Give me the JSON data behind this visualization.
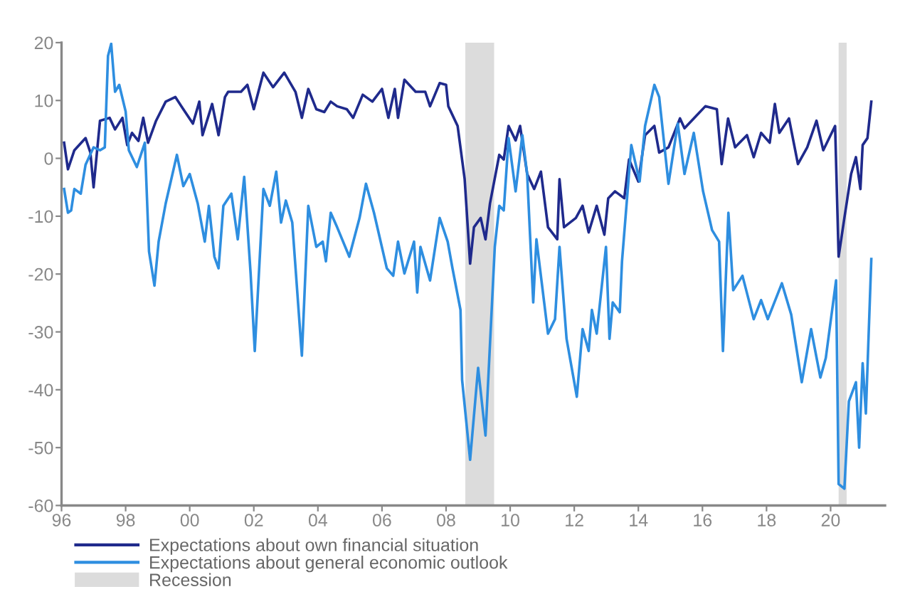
{
  "chart_data": {
    "type": "line",
    "xlim": [
      1996,
      2021.7
    ],
    "ylim": [
      -60,
      20
    ],
    "xticks": [
      {
        "value": 1996,
        "label": "96"
      },
      {
        "value": 1998,
        "label": "98"
      },
      {
        "value": 2000,
        "label": "00"
      },
      {
        "value": 2002,
        "label": "02"
      },
      {
        "value": 2004,
        "label": "04"
      },
      {
        "value": 2006,
        "label": "06"
      },
      {
        "value": 2008,
        "label": "08"
      },
      {
        "value": 2010,
        "label": "10"
      },
      {
        "value": 2012,
        "label": "12"
      },
      {
        "value": 2014,
        "label": "14"
      },
      {
        "value": 2016,
        "label": "16"
      },
      {
        "value": 2018,
        "label": "18"
      },
      {
        "value": 2020,
        "label": "20"
      }
    ],
    "yticks": [
      -60,
      -50,
      -40,
      -30,
      -20,
      -10,
      0,
      10,
      20
    ],
    "grid": false,
    "legend": "bottom left",
    "marker": "none",
    "line_style": "solid",
    "series": [
      {
        "name": "Expectations about own financial situation",
        "color": "#1f2a8c",
        "x": [
          1996.08,
          1996.2,
          1996.4,
          1996.75,
          1996.9,
          1997.0,
          1997.2,
          1997.5,
          1997.67,
          1997.9,
          1998.05,
          1998.2,
          1998.4,
          1998.55,
          1998.7,
          1998.95,
          1999.25,
          1999.55,
          1999.8,
          2000.1,
          2000.3,
          2000.4,
          2000.7,
          2000.9,
          2001.1,
          2001.2,
          2001.6,
          2001.8,
          2002.0,
          2002.3,
          2002.6,
          2002.95,
          2003.3,
          2003.5,
          2003.7,
          2003.95,
          2004.2,
          2004.4,
          2004.6,
          2004.9,
          2005.1,
          2005.4,
          2005.7,
          2006.0,
          2006.2,
          2006.4,
          2006.5,
          2006.7,
          2007.05,
          2007.35,
          2007.5,
          2007.8,
          2008.0,
          2008.07,
          2008.36,
          2008.58,
          2008.75,
          2008.87,
          2009.08,
          2009.23,
          2009.37,
          2009.66,
          2009.8,
          2009.95,
          2010.17,
          2010.31,
          2010.53,
          2010.75,
          2010.96,
          2011.18,
          2011.47,
          2011.54,
          2011.68,
          2012.05,
          2012.26,
          2012.45,
          2012.7,
          2012.94,
          2013.06,
          2013.27,
          2013.56,
          2013.71,
          2014.0,
          2014.21,
          2014.5,
          2014.65,
          2014.94,
          2015.3,
          2015.44,
          2015.73,
          2016.09,
          2016.45,
          2016.6,
          2016.8,
          2017.02,
          2017.39,
          2017.6,
          2017.83,
          2018.1,
          2018.26,
          2018.4,
          2018.7,
          2018.98,
          2019.27,
          2019.56,
          2019.77,
          2020.14,
          2020.25,
          2020.43,
          2020.64,
          2020.79,
          2020.93,
          2021.0,
          2021.15,
          2021.27
        ],
        "values": [
          2.7,
          -1.9,
          1.4,
          3.5,
          1,
          -5,
          6.5,
          7,
          5,
          7,
          2.3,
          4.4,
          3,
          7,
          2.7,
          6.5,
          9.8,
          10.6,
          8.5,
          6,
          9.8,
          4,
          9.4,
          4,
          10.6,
          11.5,
          11.5,
          12.7,
          8.5,
          14.8,
          12.3,
          14.8,
          11.5,
          7,
          12,
          8.5,
          8,
          9.8,
          9,
          8.5,
          7,
          11,
          9.8,
          12,
          7,
          12,
          7,
          13.6,
          11.5,
          11.5,
          9,
          13,
          12.7,
          9,
          5.6,
          -3.6,
          -18.2,
          -11.9,
          -10.3,
          -14,
          -7.8,
          0.6,
          -0.2,
          5.6,
          3.1,
          5.6,
          -2.7,
          -5.3,
          -2.3,
          -11.9,
          -14,
          -3.6,
          -11.9,
          -10.3,
          -8.2,
          -12.8,
          -8.2,
          -13.2,
          -6.9,
          -5.7,
          -6.9,
          -0.2,
          -4,
          4,
          5.6,
          1,
          1.9,
          6.9,
          5.2,
          6.9,
          9,
          8.5,
          -1,
          6.9,
          1.9,
          4,
          0.2,
          4.4,
          2.7,
          9.4,
          4.4,
          6.9,
          -1,
          1.9,
          6.5,
          1.4,
          5.6,
          -17,
          -10.3,
          -2.7,
          0.2,
          -5.3,
          2.3,
          3.5,
          9.8
        ]
      },
      {
        "name": "Expectations about general economic outlook",
        "color": "#2e8ee0",
        "x": [
          1996.08,
          1996.2,
          1996.3,
          1996.4,
          1996.6,
          1996.75,
          1997.0,
          1997.2,
          1997.35,
          1997.45,
          1997.55,
          1997.67,
          1997.8,
          1998.0,
          1998.1,
          1998.35,
          1998.6,
          1998.73,
          1998.9,
          1999.03,
          1999.25,
          1999.6,
          1999.8,
          2000.0,
          2000.25,
          2000.47,
          2000.6,
          2000.77,
          2000.9,
          2001.05,
          2001.3,
          2001.5,
          2001.7,
          2001.9,
          2002.03,
          2002.3,
          2002.5,
          2002.7,
          2002.85,
          2003.0,
          2003.2,
          2003.5,
          2003.7,
          2003.95,
          2004.15,
          2004.25,
          2004.4,
          2004.6,
          2004.98,
          2005.3,
          2005.5,
          2005.75,
          2006.15,
          2006.35,
          2006.5,
          2006.7,
          2007.0,
          2007.1,
          2007.2,
          2007.5,
          2007.8,
          2008.05,
          2008.2,
          2008.45,
          2008.5,
          2008.75,
          2009.0,
          2009.23,
          2009.52,
          2009.66,
          2009.8,
          2009.95,
          2010.17,
          2010.38,
          2010.53,
          2010.72,
          2010.82,
          2011.18,
          2011.4,
          2011.54,
          2011.76,
          2012.08,
          2012.26,
          2012.45,
          2012.55,
          2012.7,
          2012.99,
          2013.1,
          2013.2,
          2013.42,
          2013.49,
          2013.78,
          2014.04,
          2014.21,
          2014.5,
          2014.65,
          2014.94,
          2015.23,
          2015.44,
          2015.73,
          2016.02,
          2016.3,
          2016.52,
          2016.64,
          2016.81,
          2016.96,
          2017.25,
          2017.6,
          2017.83,
          2018.04,
          2018.48,
          2018.77,
          2019.1,
          2019.39,
          2019.68,
          2019.85,
          2020.17,
          2020.25,
          2020.43,
          2020.57,
          2020.79,
          2020.89,
          2021.0,
          2021.1,
          2021.27
        ],
        "values": [
          -5.3,
          -9.4,
          -9,
          -5.3,
          -6.1,
          -1.1,
          1.9,
          1.4,
          1.9,
          17.7,
          19.8,
          11.5,
          12.7,
          8.1,
          1.4,
          -1.5,
          2.7,
          -16.1,
          -22,
          -14.4,
          -7.8,
          0.6,
          -4.8,
          -2.7,
          -7.8,
          -14.4,
          -8.2,
          -17,
          -19,
          -8.2,
          -6.1,
          -14,
          -3.2,
          -19.9,
          -33.3,
          -5.3,
          -8.2,
          -2.3,
          -11.1,
          -7.3,
          -11.1,
          -34.1,
          -8.2,
          -15.3,
          -14.4,
          -17.8,
          -9.4,
          -11.9,
          -17,
          -10.3,
          -4.4,
          -9.4,
          -19,
          -20.3,
          -14.4,
          -19.9,
          -14.4,
          -23.2,
          -15.3,
          -21.1,
          -10.3,
          -14.4,
          -19,
          -26.2,
          -38.3,
          -52.1,
          -36.2,
          -47.9,
          -15.3,
          -8.2,
          -9,
          3.5,
          -5.7,
          4,
          -2.7,
          -24.9,
          -14,
          -30.3,
          -27.8,
          -15.3,
          -31.2,
          -41.2,
          -29.5,
          -33.3,
          -26.2,
          -30.3,
          -15.3,
          -31.2,
          -24.9,
          -26.6,
          -17.8,
          2.3,
          -4,
          5.6,
          12.7,
          10.6,
          -4.4,
          6,
          -2.7,
          4.4,
          -5.7,
          -12.4,
          -14.4,
          -33.3,
          -9.4,
          -22.8,
          -20.3,
          -27.8,
          -24.5,
          -27.8,
          -21.6,
          -27,
          -38.7,
          -29.5,
          -37.9,
          -34.5,
          -21.1,
          -56.3,
          -57.1,
          -42,
          -38.7,
          -50,
          -35.4,
          -44.1,
          -17.4
        ]
      }
    ],
    "bands": [
      {
        "axis": "x",
        "from": 2008.6,
        "to": 2009.5,
        "label": "Recession",
        "color": "#dcdcdc"
      },
      {
        "axis": "x",
        "from": 2020.25,
        "to": 2020.5,
        "color": "#dcdcdc"
      }
    ]
  }
}
